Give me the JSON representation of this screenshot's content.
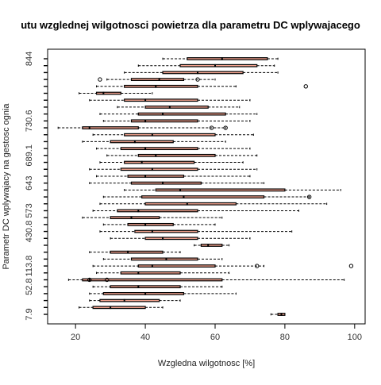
{
  "chart_data": {
    "type": "boxplot",
    "orientation": "horizontal",
    "title": "utu wzglednej wilgotnosci powietrza dla parametru DC wplywajacego",
    "xlabel": "Wzgledna wilgotnosc [%]",
    "ylabel": "Parametr DC wplywajacy na gestosc ognia",
    "xlim": [
      12,
      103
    ],
    "xticks": [
      20,
      40,
      60,
      80,
      100
    ],
    "ytick_labels": [
      "7.9",
      "52.8",
      "113.8",
      "430.8",
      "573",
      "643",
      "689.1",
      "730.6",
      "844"
    ],
    "grid": false,
    "groups": [
      {
        "label": "7.9",
        "q1": 78,
        "median": 79,
        "q3": 80,
        "wlo": 76,
        "whi": 80
      },
      {
        "label": "",
        "q1": 25,
        "median": 30,
        "q3": 40,
        "wlo": 21,
        "whi": 45
      },
      {
        "label": "",
        "q1": 27,
        "median": 34,
        "q3": 44,
        "wlo": 24,
        "whi": 50
      },
      {
        "label": "",
        "q1": 28,
        "median": 40,
        "q3": 51,
        "wlo": 24,
        "whi": 66
      },
      {
        "label": "52.8",
        "q1": 30,
        "median": 38,
        "q3": 50,
        "wlo": 25,
        "whi": 62
      },
      {
        "label": "",
        "q1": 22,
        "median": 24,
        "q3": 62,
        "wlo": 18,
        "whi": 97,
        "outliers": [
          24,
          29
        ]
      },
      {
        "label": "",
        "q1": 33,
        "median": 38,
        "q3": 50,
        "wlo": 26,
        "whi": 64
      },
      {
        "label": "113.8",
        "q1": 38,
        "median": 42,
        "q3": 60,
        "wlo": 25,
        "whi": 74,
        "outliers": [
          72,
          99
        ]
      },
      {
        "label": "",
        "q1": 36,
        "median": 46,
        "q3": 55,
        "wlo": 28,
        "whi": 62
      },
      {
        "label": "",
        "q1": 30,
        "median": 35,
        "q3": 45,
        "wlo": 24,
        "whi": 50
      },
      {
        "label": "",
        "q1": 56,
        "median": 58,
        "q3": 62,
        "wlo": 54,
        "whi": 64
      },
      {
        "label": "",
        "q1": 40,
        "median": 45,
        "q3": 55,
        "wlo": 30,
        "whi": 70
      },
      {
        "label": "430.8",
        "q1": 37,
        "median": 42,
        "q3": 55,
        "wlo": 27,
        "whi": 82
      },
      {
        "label": "",
        "q1": 35,
        "median": 40,
        "q3": 48,
        "wlo": 28,
        "whi": 60
      },
      {
        "label": "",
        "q1": 30,
        "median": 36,
        "q3": 44,
        "wlo": 22,
        "whi": 62
      },
      {
        "label": "573",
        "q1": 32,
        "median": 38,
        "q3": 55,
        "wlo": 25,
        "whi": 84
      },
      {
        "label": "",
        "q1": 40,
        "median": 52,
        "q3": 66,
        "wlo": 27,
        "whi": 92
      },
      {
        "label": "",
        "q1": 39,
        "median": 51,
        "q3": 74,
        "wlo": 28,
        "whi": 87,
        "outliers": [
          87
        ]
      },
      {
        "label": "",
        "q1": 43,
        "median": 50,
        "q3": 80,
        "wlo": 34,
        "whi": 96
      },
      {
        "label": "643",
        "q1": 36,
        "median": 45,
        "q3": 56,
        "wlo": 24,
        "whi": 74
      },
      {
        "label": "",
        "q1": 35,
        "median": 40,
        "q3": 51,
        "wlo": 26,
        "whi": 70
      },
      {
        "label": "",
        "q1": 33,
        "median": 42,
        "q3": 55,
        "wlo": 24,
        "whi": 72
      },
      {
        "label": "",
        "q1": 34,
        "median": 39,
        "q3": 54,
        "wlo": 27,
        "whi": 68
      },
      {
        "label": "689.1",
        "q1": 38,
        "median": 43,
        "q3": 60,
        "wlo": 29,
        "whi": 72
      },
      {
        "label": "",
        "q1": 33,
        "median": 40,
        "q3": 55,
        "wlo": 26,
        "whi": 70
      },
      {
        "label": "",
        "q1": 30,
        "median": 37,
        "q3": 48,
        "wlo": 22,
        "whi": 63
      },
      {
        "label": "",
        "q1": 34,
        "median": 42,
        "q3": 60,
        "wlo": 25,
        "whi": 71
      },
      {
        "label": "",
        "q1": 22,
        "median": 24,
        "q3": 38,
        "wlo": 15,
        "whi": 63,
        "outliers": [
          59,
          63
        ]
      },
      {
        "label": "730.6",
        "q1": 36,
        "median": 40,
        "q3": 55,
        "wlo": 28,
        "whi": 70
      },
      {
        "label": "",
        "q1": 38,
        "median": 45,
        "q3": 63,
        "wlo": 27,
        "whi": 72
      },
      {
        "label": "",
        "q1": 40,
        "median": 47,
        "q3": 58,
        "wlo": 32,
        "whi": 67
      },
      {
        "label": "",
        "q1": 34,
        "median": 40,
        "q3": 55,
        "wlo": 24,
        "whi": 70
      },
      {
        "label": "",
        "q1": 26,
        "median": 28,
        "q3": 33,
        "wlo": 21,
        "whi": 42
      },
      {
        "label": "",
        "q1": 34,
        "median": 43,
        "q3": 55,
        "wlo": 26,
        "whi": 66,
        "outliers": [
          86
        ]
      },
      {
        "label": "",
        "q1": 36,
        "median": 44,
        "q3": 51,
        "wlo": 29,
        "whi": 60,
        "outliers": [
          27,
          55
        ]
      },
      {
        "label": "",
        "q1": 45,
        "median": 55,
        "q3": 68,
        "wlo": 34,
        "whi": 78
      },
      {
        "label": "",
        "q1": 50,
        "median": 60,
        "q3": 72,
        "wlo": 38,
        "whi": 77
      },
      {
        "label": "844",
        "q1": 52,
        "median": 62,
        "q3": 75,
        "wlo": 45,
        "whi": 78
      }
    ]
  }
}
